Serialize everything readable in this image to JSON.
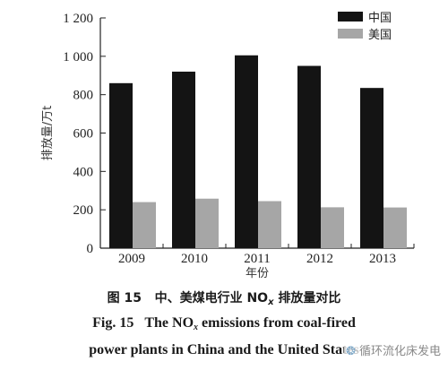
{
  "chart_data": {
    "type": "bar",
    "categories": [
      "2009",
      "2010",
      "2011",
      "2012",
      "2013"
    ],
    "series": [
      {
        "name": "中国",
        "values": [
          860,
          920,
          1005,
          950,
          835
        ],
        "color": "#141414"
      },
      {
        "name": "美国",
        "values": [
          240,
          258,
          245,
          213,
          212
        ],
        "color": "#a6a6a6"
      }
    ],
    "xlabel": "年份",
    "ylabel": "排放量/万t",
    "ylim": [
      0,
      1200
    ],
    "yticks": [
      0,
      200,
      400,
      600,
      800,
      1000,
      1200
    ],
    "ytick_labels": [
      "0",
      "200",
      "400",
      "600",
      "800",
      "1 000",
      "1 200"
    ],
    "legend_position": "top-right",
    "grid": false
  },
  "caption": {
    "cn_prefix": "图 15",
    "cn_main": "中、美煤电行业 NO",
    "cn_sub": "x",
    "cn_suffix": " 排放量对比",
    "en_prefix": "Fig. 15",
    "en_line1_main": "The NO",
    "en_line1_sub": "x",
    "en_line1_rest": " emissions from coal-fired",
    "en_line2": "power plants in China and the United States"
  },
  "watermark": {
    "icon": "wechat-icon",
    "text": "循环流化床发电"
  }
}
